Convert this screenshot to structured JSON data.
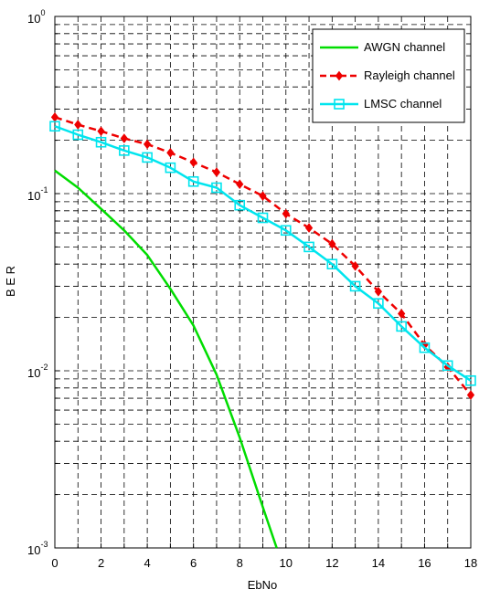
{
  "chart_data": {
    "type": "line",
    "title": "",
    "xlabel": "EbNo",
    "ylabel": "B E R",
    "x_scale": "linear",
    "y_scale": "log",
    "xlim": [
      0,
      18
    ],
    "ylim": [
      0.001,
      1
    ],
    "grid": true,
    "legend_position": "top-right",
    "x_ticks": [
      "0",
      "2",
      "4",
      "6",
      "8",
      "10",
      "12",
      "14",
      "16",
      "18"
    ],
    "y_ticks": [
      {
        "base": "10",
        "exp": "-3"
      },
      {
        "base": "10",
        "exp": "-2"
      },
      {
        "base": "10",
        "exp": "-1"
      },
      {
        "base": "10",
        "exp": "0"
      }
    ],
    "series": [
      {
        "name": "AWGN channel",
        "color": "#00dd00",
        "line_style": "solid",
        "marker": "none",
        "x": [
          0,
          1,
          2,
          3,
          4,
          5,
          6,
          7,
          8,
          9,
          9.6
        ],
        "y": [
          0.135,
          0.108,
          0.082,
          0.062,
          0.045,
          0.029,
          0.018,
          0.0095,
          0.0042,
          0.0017,
          0.001
        ]
      },
      {
        "name": "Rayleigh channel",
        "color": "#ee0000",
        "line_style": "dashed",
        "marker": "diamond",
        "x": [
          0,
          1,
          2,
          3,
          4,
          5,
          6,
          7,
          8,
          9,
          10,
          11,
          12,
          13,
          14,
          15,
          16,
          17,
          18
        ],
        "y": [
          0.27,
          0.245,
          0.225,
          0.205,
          0.19,
          0.17,
          0.15,
          0.132,
          0.113,
          0.097,
          0.077,
          0.064,
          0.052,
          0.039,
          0.028,
          0.021,
          0.014,
          0.0105,
          0.0073
        ]
      },
      {
        "name": "LMSC channel",
        "color": "#00e5ee",
        "line_style": "solid",
        "marker": "square",
        "x": [
          0,
          1,
          2,
          3,
          4,
          5,
          6,
          7,
          8,
          9,
          10,
          11,
          12,
          13,
          14,
          15,
          16,
          17,
          18
        ],
        "y": [
          0.24,
          0.215,
          0.195,
          0.175,
          0.16,
          0.14,
          0.117,
          0.108,
          0.086,
          0.073,
          0.062,
          0.05,
          0.04,
          0.03,
          0.024,
          0.0178,
          0.0135,
          0.0107,
          0.0088
        ]
      }
    ]
  }
}
